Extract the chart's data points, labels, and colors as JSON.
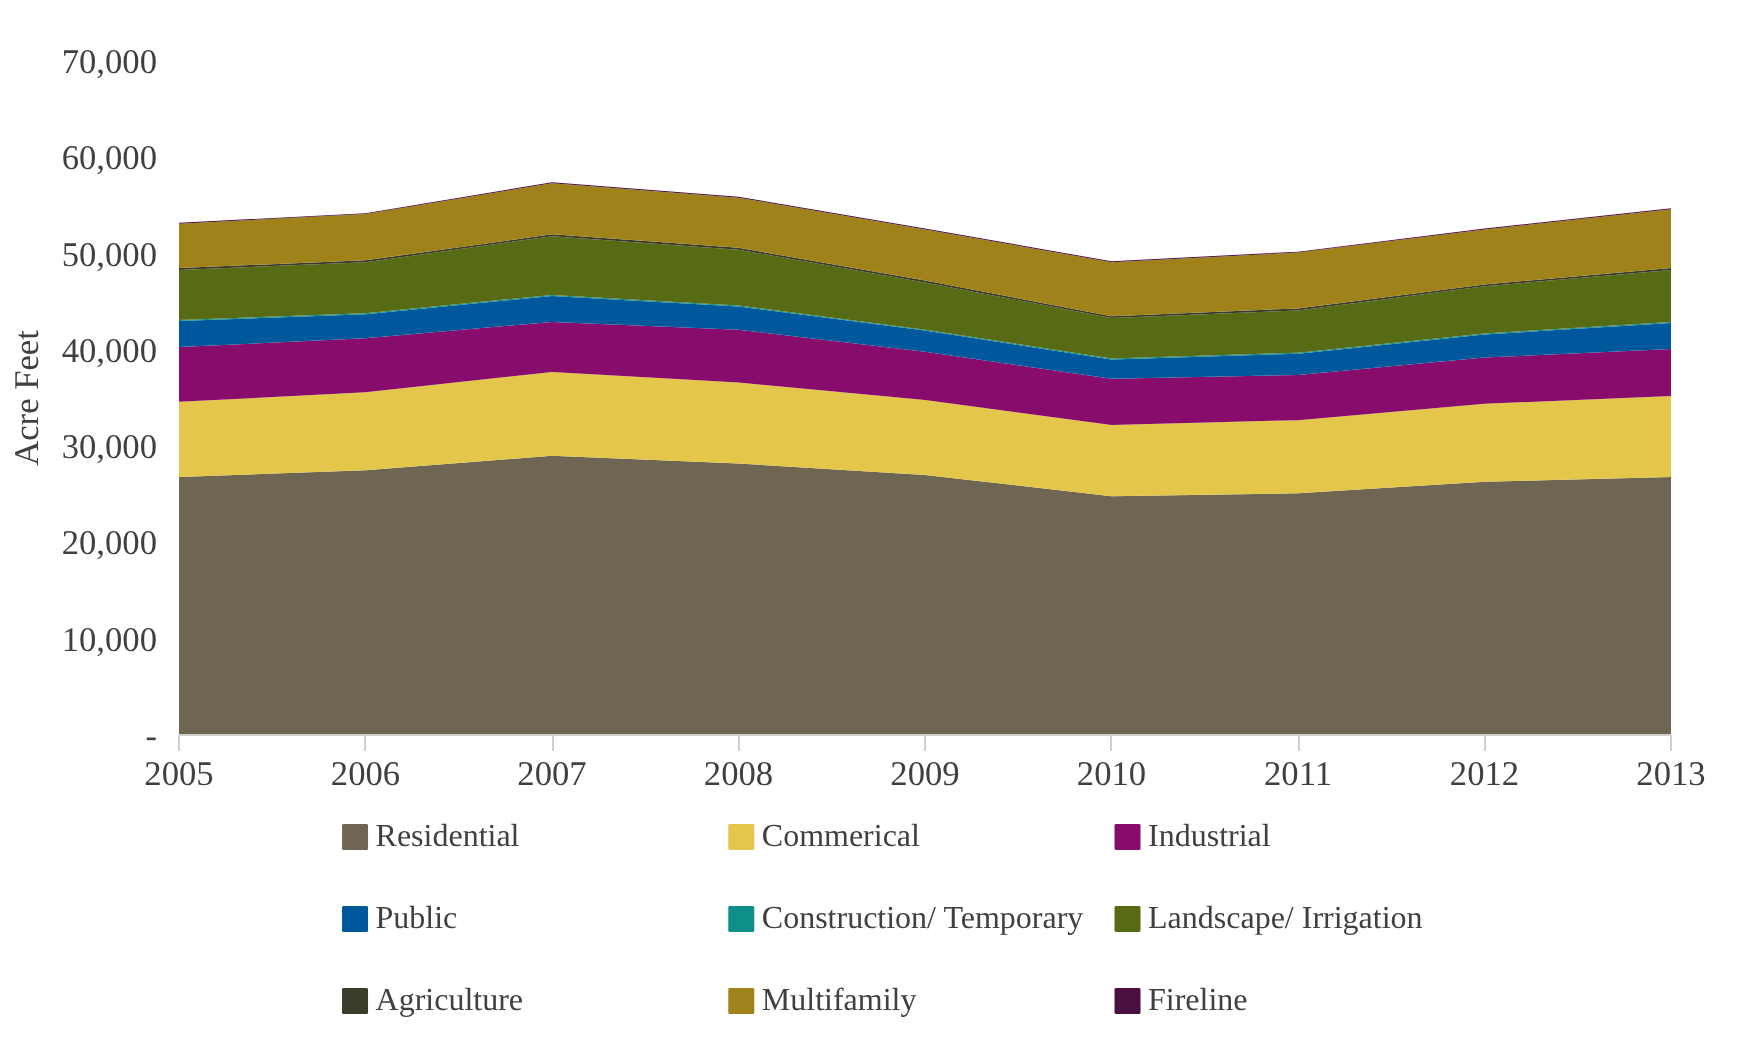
{
  "chart_data": {
    "type": "area",
    "stacked": true,
    "ylabel": "Acre Feet",
    "x": [
      2005,
      2006,
      2007,
      2008,
      2009,
      2010,
      2011,
      2012,
      2013
    ],
    "xlim": [
      2005,
      2013
    ],
    "xticks": [
      2005,
      2006,
      2007,
      2008,
      2009,
      2010,
      2011,
      2012,
      2013
    ],
    "ylim": [
      0,
      70000
    ],
    "yticks": [
      {
        "value": 0,
        "label": "-"
      },
      {
        "value": 10000,
        "label": "10,000"
      },
      {
        "value": 20000,
        "label": "20,000"
      },
      {
        "value": 30000,
        "label": "30,000"
      },
      {
        "value": 40000,
        "label": "40,000"
      },
      {
        "value": 50000,
        "label": "50,000"
      },
      {
        "value": 60000,
        "label": "60,000"
      },
      {
        "value": 70000,
        "label": "70,000"
      }
    ],
    "grid": false,
    "legend": "bottom",
    "series": [
      {
        "name": "Residential",
        "color": "#6e6652",
        "values": [
          26800,
          27500,
          29000,
          28200,
          27000,
          24800,
          25100,
          26300,
          26800
        ]
      },
      {
        "name": "Commerical",
        "color": "#e4c64a",
        "values": [
          7800,
          8100,
          8700,
          8400,
          7800,
          7400,
          7600,
          8100,
          8400
        ]
      },
      {
        "name": "Industrial",
        "color": "#870c6c",
        "values": [
          5700,
          5600,
          5200,
          5500,
          5000,
          4800,
          4700,
          4800,
          4900
        ]
      },
      {
        "name": "Public",
        "color": "#00589c",
        "values": [
          2700,
          2500,
          2700,
          2400,
          2200,
          2000,
          2200,
          2400,
          2700
        ]
      },
      {
        "name": "Construction/ Temporary",
        "color": "#0f8f8a",
        "values": [
          100,
          100,
          100,
          100,
          100,
          100,
          100,
          100,
          100
        ]
      },
      {
        "name": "Landscape/ Irrigation",
        "color": "#566b13",
        "values": [
          5200,
          5300,
          6100,
          5800,
          4900,
          4200,
          4400,
          4900,
          5400
        ]
      },
      {
        "name": "Agriculture",
        "color": "#3b3b2b",
        "values": [
          200,
          200,
          200,
          200,
          200,
          200,
          200,
          200,
          200
        ]
      },
      {
        "name": "Multifamily",
        "color": "#a0821a",
        "values": [
          4600,
          4800,
          5300,
          5200,
          5300,
          5600,
          5800,
          5700,
          6100
        ]
      },
      {
        "name": "Fireline",
        "color": "#4a1040",
        "values": [
          100,
          100,
          100,
          100,
          100,
          100,
          100,
          100,
          100
        ]
      }
    ]
  }
}
